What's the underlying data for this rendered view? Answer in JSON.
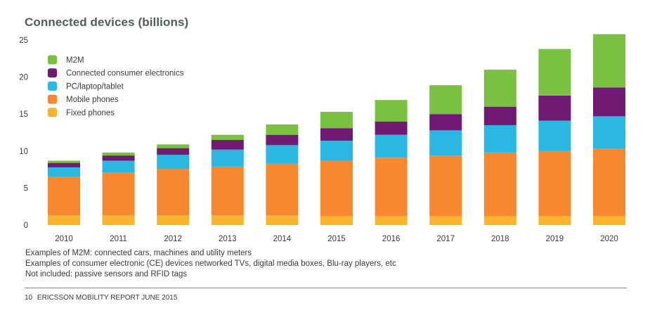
{
  "chart_data": {
    "type": "bar",
    "stacked": true,
    "title": "Connected devices (billions)",
    "xlabel": "",
    "ylabel": "",
    "ylim": [
      0,
      25
    ],
    "yticks": [
      "0",
      "5",
      "10",
      "15",
      "20",
      "25"
    ],
    "grid": false,
    "legend_position": "top-left",
    "categories": [
      "2010",
      "2011",
      "2012",
      "2013",
      "2014",
      "2015",
      "2016",
      "2017",
      "2018",
      "2019",
      "2020"
    ],
    "series": [
      {
        "name": "Fixed phones",
        "color": "#fbb42d",
        "values": [
          1.3,
          1.3,
          1.3,
          1.3,
          1.3,
          1.2,
          1.2,
          1.2,
          1.2,
          1.2,
          1.2
        ]
      },
      {
        "name": "Mobile phones",
        "color": "#f7882f",
        "values": [
          5.2,
          5.8,
          6.3,
          6.6,
          7.0,
          7.5,
          7.9,
          8.2,
          8.6,
          8.8,
          9.1
        ]
      },
      {
        "name": "PC/laptop/tablet",
        "color": "#2ab7e1",
        "values": [
          1.3,
          1.6,
          1.9,
          2.3,
          2.5,
          2.7,
          3.1,
          3.4,
          3.7,
          4.1,
          4.4
        ]
      },
      {
        "name": "Connected consumer electronics",
        "color": "#711a73",
        "values": [
          0.6,
          0.7,
          0.9,
          1.3,
          1.4,
          1.7,
          1.8,
          2.2,
          2.5,
          3.4,
          3.9
        ]
      },
      {
        "name": "M2M",
        "color": "#7ac142",
        "values": [
          0.3,
          0.4,
          0.5,
          0.7,
          1.4,
          2.2,
          2.9,
          3.9,
          5.0,
          6.3,
          7.2
        ]
      }
    ],
    "legend_order": [
      "M2M",
      "Connected consumer electronics",
      "PC/laptop/tablet",
      "Mobile phones",
      "Fixed phones"
    ]
  },
  "notes": {
    "line1": "Examples of M2M: connected cars, machines and utility meters",
    "line2": "Examples of consumer electronic (CE) devices networked TVs, digital media boxes, Blu-ray players, etc",
    "line3": "Not included: passive sensors and RFID tags"
  },
  "footer": {
    "page_number": "10",
    "report_name": "ERICSSON MOBILITY REPORT",
    "date": "JUNE 2015"
  }
}
